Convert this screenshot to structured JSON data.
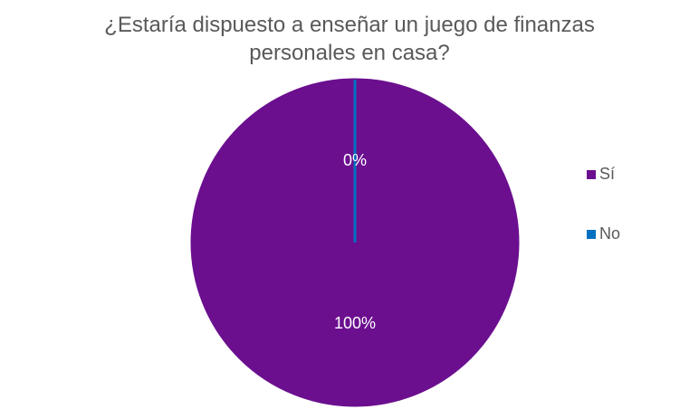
{
  "chart_data": {
    "type": "pie",
    "title": "¿Estaría dispuesto a enseñar un juego de finanzas personales en casa?",
    "categories": [
      "Sí",
      "No"
    ],
    "values": [
      100,
      0
    ],
    "value_labels": [
      "100%",
      "0%"
    ],
    "colors": [
      "#6b0f8f",
      "#0070c0"
    ],
    "legend": "right"
  }
}
